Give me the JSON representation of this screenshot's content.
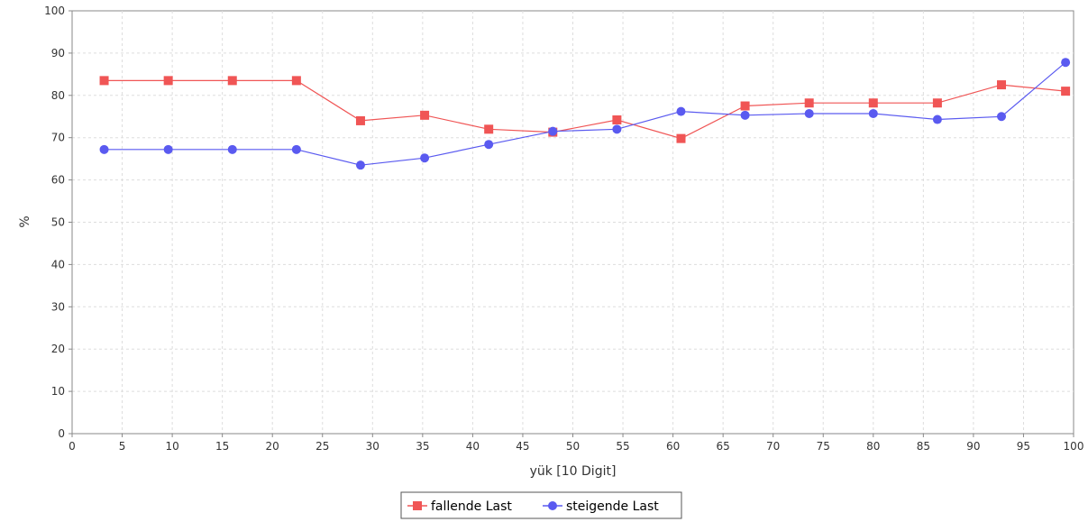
{
  "chart_data": {
    "type": "line",
    "xlabel": "yük [10 Digit]",
    "ylabel": "%",
    "xlim": [
      0,
      100
    ],
    "ylim": [
      0,
      100
    ],
    "x_ticks": [
      0,
      5,
      10,
      15,
      20,
      25,
      30,
      35,
      40,
      45,
      50,
      55,
      60,
      65,
      70,
      75,
      80,
      85,
      90,
      95,
      100
    ],
    "y_ticks": [
      0,
      10,
      20,
      30,
      40,
      50,
      60,
      70,
      80,
      90,
      100
    ],
    "grid": true,
    "legend_position": "bottom-center",
    "series": [
      {
        "name": "fallende Last",
        "color": "#f05555",
        "marker": "square",
        "points": [
          [
            3.2,
            83.5
          ],
          [
            9.6,
            83.5
          ],
          [
            16.0,
            83.5
          ],
          [
            22.4,
            83.5
          ],
          [
            28.8,
            74.0
          ],
          [
            35.2,
            75.3
          ],
          [
            41.6,
            72.0
          ],
          [
            48.0,
            71.3
          ],
          [
            54.4,
            74.2
          ],
          [
            60.8,
            69.8
          ],
          [
            67.2,
            77.5
          ],
          [
            73.6,
            78.2
          ],
          [
            80.0,
            78.2
          ],
          [
            86.4,
            78.2
          ],
          [
            92.8,
            82.5
          ],
          [
            99.2,
            81.0
          ]
        ]
      },
      {
        "name": "steigende Last",
        "color": "#5a5af0",
        "marker": "circle",
        "points": [
          [
            3.2,
            67.2
          ],
          [
            9.6,
            67.2
          ],
          [
            16.0,
            67.2
          ],
          [
            22.4,
            67.2
          ],
          [
            28.8,
            63.5
          ],
          [
            35.2,
            65.2
          ],
          [
            41.6,
            68.4
          ],
          [
            48.0,
            71.5
          ],
          [
            54.4,
            72.0
          ],
          [
            60.8,
            76.2
          ],
          [
            67.2,
            75.3
          ],
          [
            73.6,
            75.7
          ],
          [
            80.0,
            75.7
          ],
          [
            86.4,
            74.3
          ],
          [
            92.8,
            75.0
          ],
          [
            99.2,
            87.8
          ]
        ]
      }
    ]
  }
}
